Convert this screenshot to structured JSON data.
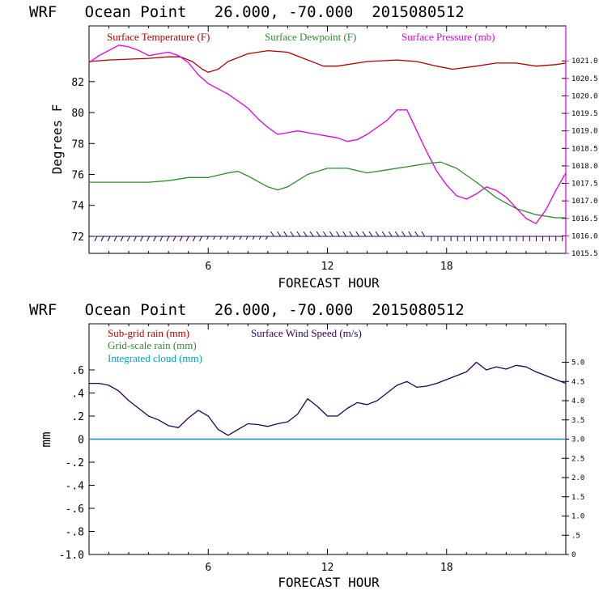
{
  "chart_data": [
    {
      "type": "line",
      "title": "WRF   Ocean Point   26.000, -70.000  2015080512",
      "xlabel": "FORECAST HOUR",
      "ylabel": "Degrees F",
      "xlim": [
        0,
        24
      ],
      "xticks": [
        6,
        12,
        18
      ],
      "ylim": [
        70.9,
        85.6
      ],
      "yticks": [
        72,
        74,
        76,
        78,
        80,
        82
      ],
      "y2lim": [
        1015.5,
        1022.0
      ],
      "y2ticks": [
        1015.5,
        1016.0,
        1016.5,
        1017.0,
        1017.5,
        1018.0,
        1018.5,
        1019.0,
        1019.5,
        1020.0,
        1020.5,
        1021.0
      ],
      "y2ticklabels": [
        "1015.5",
        "1016.0",
        "1016.5",
        "1017.0",
        "1017.5",
        "1018.0",
        "1018.5",
        "1019.0",
        "1019.5",
        "1020.0",
        "1020.5",
        "1021.0"
      ],
      "series": [
        {
          "name": "Surface Temperature (F)",
          "color": "#b00000",
          "axis": "left",
          "x": [
            0,
            1,
            2,
            3,
            4,
            4.6,
            5.2,
            5.7,
            6,
            6.5,
            7,
            8,
            9,
            10,
            11,
            11.8,
            12.5,
            14,
            15.5,
            16.5,
            17.5,
            18.3,
            19.5,
            20.5,
            21.5,
            22.5,
            23.5,
            24
          ],
          "values": [
            83.3,
            83.4,
            83.45,
            83.5,
            83.6,
            83.6,
            83.3,
            82.8,
            82.6,
            82.8,
            83.3,
            83.8,
            84.0,
            83.9,
            83.4,
            83.0,
            83.0,
            83.3,
            83.4,
            83.3,
            83.0,
            82.8,
            83.0,
            83.2,
            83.2,
            83.0,
            83.1,
            83.2
          ]
        },
        {
          "name": "Surface Dewpoint (F)",
          "color": "#2e8b2e",
          "axis": "left",
          "x": [
            0,
            0.5,
            1,
            2,
            3,
            4,
            5,
            6,
            7,
            7.5,
            8,
            9,
            9.5,
            10,
            11,
            12,
            13,
            14,
            15,
            16,
            17,
            17.7,
            18.5,
            19.5,
            20.5,
            21.5,
            22.5,
            23.5,
            24
          ],
          "values": [
            75.5,
            75.5,
            75.5,
            75.5,
            75.5,
            75.6,
            75.8,
            75.8,
            76.1,
            76.2,
            75.9,
            75.2,
            75.0,
            75.2,
            76.0,
            76.4,
            76.4,
            76.1,
            76.3,
            76.5,
            76.7,
            76.8,
            76.4,
            75.5,
            74.5,
            73.8,
            73.4,
            73.2,
            73.2
          ]
        },
        {
          "name": "Surface Pressure (mb)",
          "color": "#e000e0",
          "axis": "right",
          "x": [
            0,
            0.5,
            1,
            1.5,
            2,
            2.5,
            3,
            3.5,
            4,
            4.5,
            5,
            5.5,
            6,
            6.5,
            7,
            7.5,
            8,
            8.5,
            9,
            9.5,
            10,
            10.5,
            11,
            11.5,
            12,
            12.5,
            13,
            13.5,
            14,
            14.5,
            15,
            15.5,
            16,
            16.5,
            17,
            17.5,
            18,
            18.5,
            19,
            19.5,
            20,
            20.5,
            21,
            21.5,
            22,
            22.5,
            23,
            23.5,
            24
          ],
          "values": [
            1020.95,
            1021.15,
            1021.3,
            1021.45,
            1021.4,
            1021.3,
            1021.15,
            1021.2,
            1021.25,
            1021.15,
            1020.95,
            1020.6,
            1020.35,
            1020.2,
            1020.05,
            1019.85,
            1019.65,
            1019.35,
            1019.1,
            1018.9,
            1018.95,
            1019.0,
            1018.95,
            1018.9,
            1018.85,
            1018.8,
            1018.7,
            1018.75,
            1018.9,
            1019.1,
            1019.3,
            1019.6,
            1019.6,
            1019.0,
            1018.4,
            1017.85,
            1017.45,
            1017.15,
            1017.05,
            1017.2,
            1017.4,
            1017.3,
            1017.1,
            1016.8,
            1016.5,
            1016.35,
            1016.75,
            1017.3,
            1017.8
          ]
        }
      ],
      "wind_barbs": {
        "color": "#2a0050",
        "y": 72,
        "spacing_hours": 0.33,
        "label": ""
      }
    },
    {
      "type": "line",
      "title": "WRF   Ocean Point   26.000, -70.000  2015080512",
      "xlabel": "FORECAST HOUR",
      "ylabel": "mm",
      "xlim": [
        0,
        24
      ],
      "xticks": [
        6,
        12,
        18
      ],
      "ylim": [
        -1.0,
        1.0
      ],
      "yticks": [
        -1.0,
        -0.8,
        -0.6,
        -0.4,
        -0.2,
        0,
        0.2,
        0.4,
        0.6
      ],
      "yticklabels": [
        "-1.0",
        "-.8",
        "-.6",
        "-.4",
        "-.2",
        "0",
        ".2",
        ".4",
        ".6"
      ],
      "y2lim": [
        0,
        6.0
      ],
      "y2ticks": [
        0,
        0.5,
        1.0,
        1.5,
        2.0,
        2.5,
        3.0,
        3.5,
        4.0,
        4.5,
        5.0
      ],
      "y2ticklabels": [
        "0",
        ".5",
        "1.0",
        "1.5",
        "2.0",
        "2.5",
        "3.0",
        "3.5",
        "4.0",
        "4.5",
        "5.0"
      ],
      "series": [
        {
          "name": "Sub-grid rain (mm)",
          "color": "#b00000",
          "axis": "left",
          "x": [
            0,
            24
          ],
          "values": [
            0,
            0
          ]
        },
        {
          "name": "Grid-scale rain (mm)",
          "color": "#2e8b2e",
          "axis": "left",
          "x": [
            0,
            24
          ],
          "values": [
            0,
            0
          ]
        },
        {
          "name": "Integrated cloud (mm)",
          "color": "#00a0d0",
          "axis": "left",
          "x": [
            0,
            24
          ],
          "values": [
            0,
            0
          ]
        },
        {
          "name": "Surface Wind Speed (m/s)",
          "color": "#2a0050",
          "axis": "right",
          "x": [
            0,
            0.5,
            1,
            1.5,
            2,
            2.5,
            3,
            3.5,
            4,
            4.5,
            5,
            5.5,
            6,
            6.5,
            7,
            7.5,
            8,
            8.5,
            9,
            9.5,
            10,
            10.5,
            11,
            11.5,
            12,
            12.5,
            13,
            13.5,
            14,
            14.5,
            15,
            15.5,
            16,
            16.5,
            17,
            17.5,
            18,
            18.5,
            19,
            19.5,
            20,
            20.5,
            21,
            21.5,
            22,
            22.5,
            23,
            23.5,
            24
          ],
          "values": [
            4.45,
            4.45,
            4.4,
            4.25,
            4.0,
            3.8,
            3.6,
            3.5,
            3.35,
            3.3,
            3.55,
            3.75,
            3.6,
            3.25,
            3.1,
            3.25,
            3.4,
            3.38,
            3.33,
            3.4,
            3.45,
            3.65,
            4.05,
            3.85,
            3.6,
            3.6,
            3.8,
            3.95,
            3.9,
            4.0,
            4.2,
            4.4,
            4.5,
            4.35,
            4.38,
            4.45,
            4.55,
            4.65,
            4.75,
            5.0,
            4.8,
            4.88,
            4.82,
            4.92,
            4.88,
            4.75,
            4.65,
            4.55,
            4.45
          ]
        }
      ]
    }
  ]
}
